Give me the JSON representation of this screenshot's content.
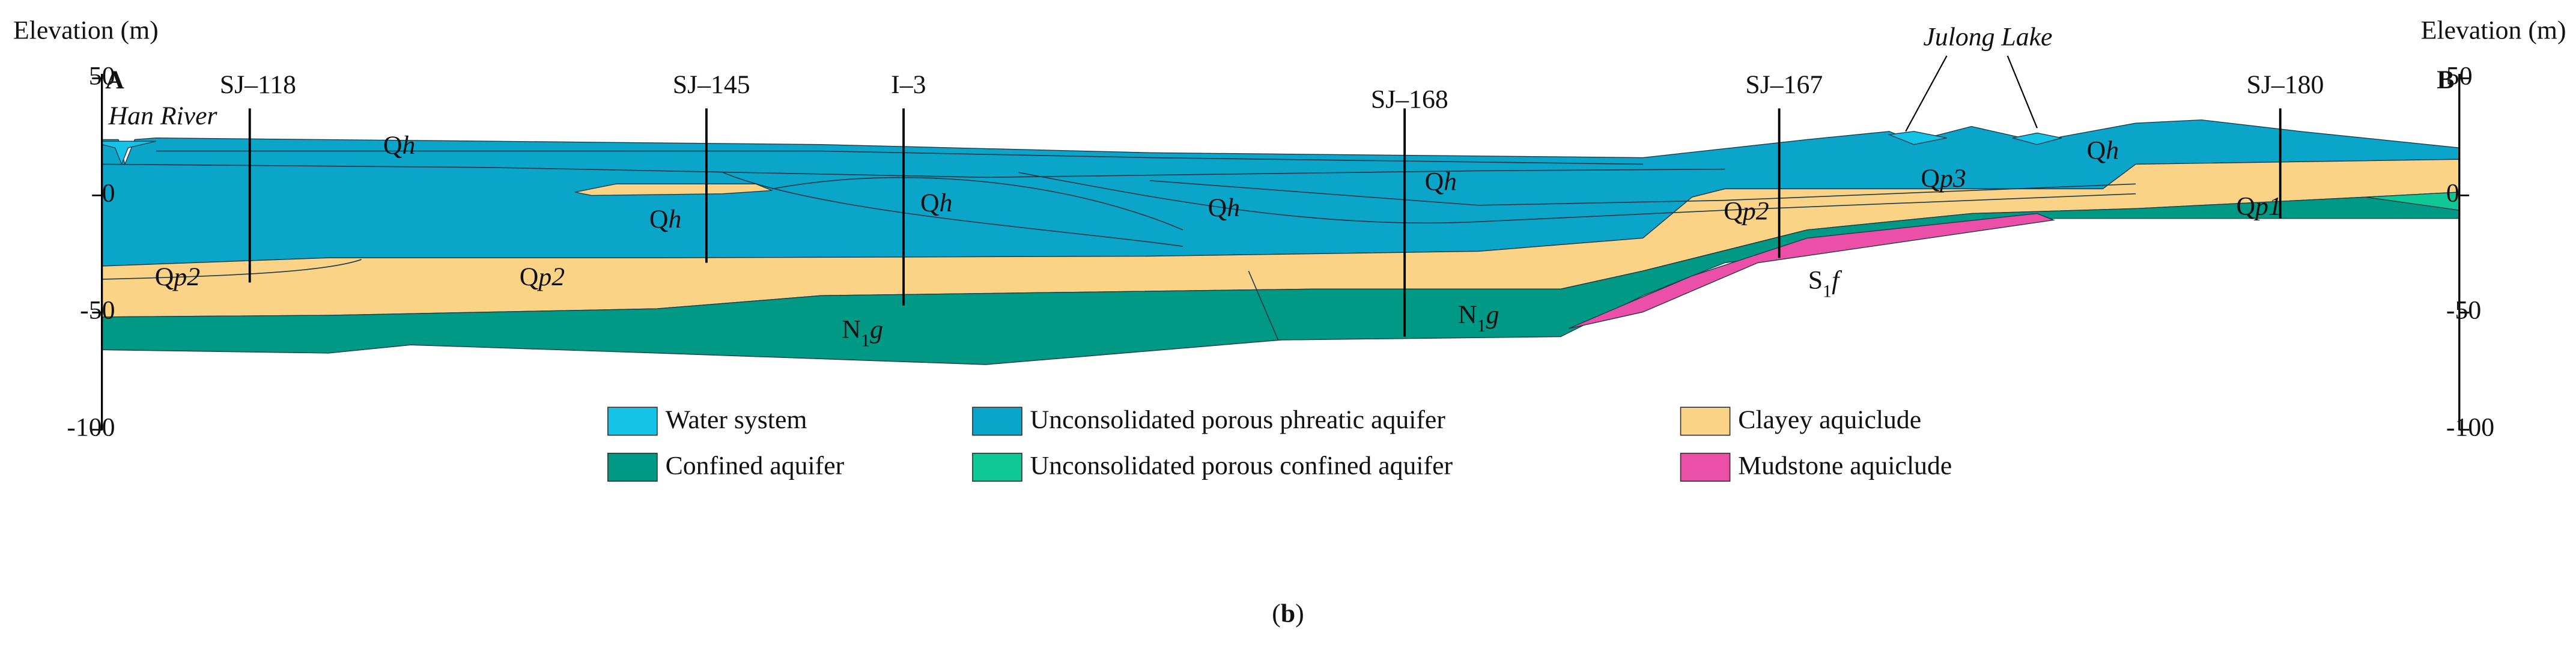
{
  "axes": {
    "left": {
      "label": "Elevation (m)",
      "ticks": [
        50,
        0,
        -50,
        -100
      ]
    },
    "right": {
      "label": "Elevation (m)",
      "ticks": [
        50,
        0,
        -50,
        -100
      ]
    },
    "lim": [
      -100,
      50
    ]
  },
  "section_ends": [
    "A",
    "B"
  ],
  "boreholes": [
    "SJ–118",
    "SJ–145",
    "I–3",
    "SJ–168",
    "SJ–167",
    "SJ–180"
  ],
  "features": [
    "Han River",
    "Julong Lake"
  ],
  "layer_labels": [
    [
      "Q",
      "h"
    ],
    [
      "Q",
      "h"
    ],
    [
      "Q",
      "h"
    ],
    [
      "Q",
      "h"
    ],
    [
      "Q",
      "h"
    ],
    [
      "Q",
      "h"
    ],
    [
      "Q",
      "p2"
    ],
    [
      "Q",
      "p2"
    ],
    [
      "Q",
      "p2"
    ],
    [
      "Q",
      "p3"
    ],
    [
      "Q",
      "p1"
    ],
    [
      "N",
      "1",
      "g"
    ],
    [
      "N",
      "1",
      "g"
    ],
    [
      "S",
      "1",
      "f"
    ]
  ],
  "legend": [
    {
      "label": "Water system",
      "color": "#14c3e6"
    },
    {
      "label": "Unconsolidated porous phreatic aquifer",
      "color": "#0aa5c9"
    },
    {
      "label": "Clayey aquiclude",
      "color": "#fbd386"
    },
    {
      "label": "Confined aquifer",
      "color": "#009985"
    },
    {
      "label": "Unconsolidated porous confined aquifer",
      "color": "#10c896"
    },
    {
      "label": "Mudstone aquiclude",
      "color": "#ec4fa8"
    }
  ],
  "caption": [
    "(",
    "b",
    ")"
  ]
}
